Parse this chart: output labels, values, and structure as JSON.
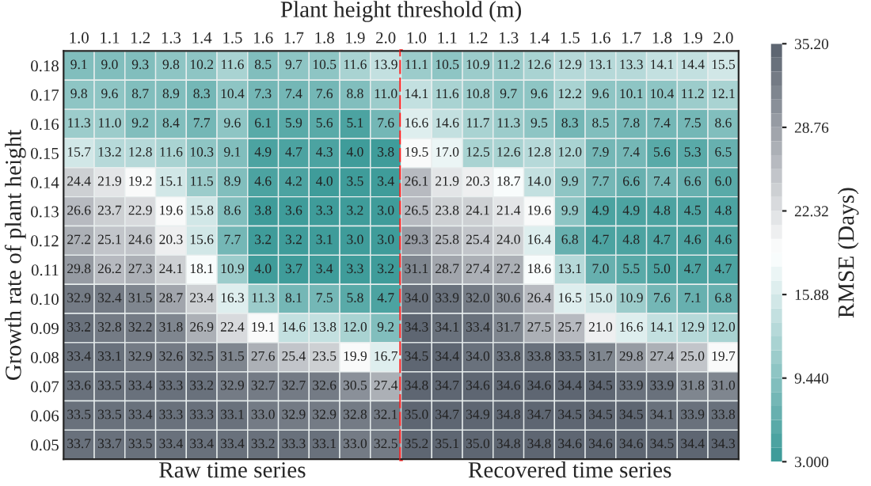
{
  "chart_data": [
    {
      "type": "heatmap",
      "title": "Plant height threshold (m)",
      "ylabel": "Growth rate of plant height",
      "xlabel": "Raw time series",
      "categories": [
        "1.0",
        "1.1",
        "1.2",
        "1.3",
        "1.4",
        "1.5",
        "1.6",
        "1.7",
        "1.8",
        "1.9",
        "2.0"
      ],
      "y_categories": [
        "0.18",
        "0.17",
        "0.16",
        "0.15",
        "0.14",
        "0.13",
        "0.12",
        "0.11",
        "0.10",
        "0.09",
        "0.08",
        "0.07",
        "0.06",
        "0.05"
      ],
      "cells": [
        [
          9.1,
          9.0,
          9.3,
          9.8,
          10.2,
          11.6,
          8.5,
          9.7,
          10.5,
          11.6,
          13.9
        ],
        [
          9.8,
          9.6,
          8.7,
          8.9,
          8.3,
          10.4,
          7.3,
          7.4,
          7.6,
          8.8,
          11.0
        ],
        [
          11.3,
          11.0,
          9.2,
          8.4,
          7.7,
          9.6,
          6.1,
          5.9,
          5.6,
          5.1,
          7.6
        ],
        [
          15.7,
          13.2,
          12.8,
          11.6,
          10.3,
          9.1,
          4.9,
          4.7,
          4.3,
          4.0,
          3.8
        ],
        [
          24.4,
          21.9,
          19.2,
          15.1,
          11.5,
          8.9,
          4.6,
          4.2,
          4.0,
          3.5,
          3.4
        ],
        [
          26.6,
          23.7,
          22.9,
          19.6,
          15.8,
          8.6,
          3.8,
          3.6,
          3.3,
          3.2,
          3.0
        ],
        [
          27.2,
          25.1,
          24.6,
          20.3,
          15.6,
          7.7,
          3.2,
          3.2,
          3.1,
          3.0,
          3.0
        ],
        [
          29.8,
          26.2,
          27.3,
          24.1,
          18.1,
          10.9,
          4.0,
          3.7,
          3.4,
          3.3,
          3.2
        ],
        [
          32.9,
          32.4,
          31.5,
          28.7,
          23.4,
          16.3,
          11.3,
          8.1,
          7.5,
          5.8,
          4.7
        ],
        [
          33.2,
          32.8,
          32.2,
          31.8,
          26.9,
          22.4,
          19.1,
          14.6,
          13.8,
          12.0,
          9.2
        ],
        [
          33.4,
          33.1,
          32.9,
          32.6,
          32.5,
          31.5,
          27.6,
          25.4,
          23.5,
          19.9,
          16.7
        ],
        [
          33.6,
          33.5,
          33.4,
          33.3,
          33.2,
          32.9,
          32.7,
          32.7,
          32.6,
          30.5,
          27.4
        ],
        [
          33.5,
          33.5,
          33.4,
          33.3,
          33.3,
          33.1,
          33.0,
          32.9,
          32.9,
          32.8,
          32.1
        ],
        [
          33.7,
          33.7,
          33.5,
          33.4,
          33.4,
          33.4,
          33.2,
          33.3,
          33.1,
          33.0,
          32.5
        ]
      ],
      "cell_labels": [
        [
          "9.1",
          "9.0",
          "9.3",
          "9.8",
          "10.2",
          "11.6",
          "8.5",
          "9.7",
          "10.5",
          "11.6",
          "13.9"
        ],
        [
          "9.8",
          "9.6",
          "8.7",
          "8.9",
          "8.3",
          "10.4",
          "7.3",
          "7.4",
          "7.6",
          "8.8",
          "11.0"
        ],
        [
          "11.3",
          "11.0",
          "9.2",
          "8.4",
          "7.7",
          "9.6",
          "6.1",
          "5.9",
          "5.6",
          "5.1",
          "7.6"
        ],
        [
          "15.7",
          "13.2",
          "12.8",
          "11.6",
          "10.3",
          "9.1",
          "4.9",
          "4.7",
          "4.3",
          "4.0",
          "3.8"
        ],
        [
          "24.4",
          "21.9",
          "19.2",
          "15.1",
          "11.5",
          "8.9",
          "4.6",
          "4.2",
          "4.0",
          "3.5",
          "3.4"
        ],
        [
          "26.6",
          "23.7",
          "22.9",
          "19.6",
          "15.8",
          "8.6",
          "3.8",
          "3.6",
          "3.3",
          "3.2",
          "3.0"
        ],
        [
          "27.2",
          "25.1",
          "24.6",
          "20.3",
          "15.6",
          "7.7",
          "3.2",
          "3.2",
          "3.1",
          "3.0",
          "3.0"
        ],
        [
          "29.8",
          "26.2",
          "27.3",
          "24.1",
          "18.1",
          "10.9",
          "4.0",
          "3.7",
          "3.4",
          "3.3",
          "3.2"
        ],
        [
          "32.9",
          "32.4",
          "31.5",
          "28.7",
          "23.4",
          "16.3",
          "11.3",
          "8.1",
          "7.5",
          "5.8",
          "4.7"
        ],
        [
          "33.2",
          "32.8",
          "32.2",
          "31.8",
          "26.9",
          "22.4",
          "19.1",
          "14.6",
          "13.8",
          "12.0",
          "9.2"
        ],
        [
          "33.4",
          "33.1",
          "32.9",
          "32.6",
          "32.5",
          "31.5",
          "27.6",
          "25.4",
          "23.5",
          "19.9",
          "16.7"
        ],
        [
          "33.6",
          "33.5",
          "33.4",
          "33.3",
          "33.2",
          "32.9",
          "32.7",
          "32.7",
          "32.6",
          "30.5",
          "27.4"
        ],
        [
          "33.5",
          "33.5",
          "33.4",
          "33.3",
          "33.3",
          "33.1",
          "33.0",
          "32.9",
          "32.9",
          "32.8",
          "32.1"
        ],
        [
          "33.7",
          "33.7",
          "33.5",
          "33.4",
          "33.4",
          "33.4",
          "33.2",
          "33.3",
          "33.1",
          "33.0",
          "32.5"
        ]
      ],
      "colors": [
        "#3f9c9a",
        "#ffffff",
        "#5e6672"
      ]
    },
    {
      "type": "heatmap",
      "xlabel": "Recovered time series",
      "clabel": "RMSE (Days)",
      "tick_labels": "x",
      "categories": [
        "1.0",
        "1.1",
        "1.2",
        "1.3",
        "1.4",
        "1.5",
        "1.6",
        "1.7",
        "1.8",
        "1.9",
        "2.0"
      ],
      "y_categories": [
        "0.18",
        "0.17",
        "0.16",
        "0.15",
        "0.14",
        "0.13",
        "0.12",
        "0.11",
        "0.10",
        "0.09",
        "0.08",
        "0.07",
        "0.06",
        "0.05"
      ],
      "cells": [
        [
          11.1,
          10.5,
          10.9,
          11.2,
          12.6,
          12.9,
          13.1,
          13.3,
          14.1,
          14.4,
          15.5
        ],
        [
          14.1,
          11.6,
          10.8,
          9.7,
          9.6,
          12.2,
          9.6,
          10.1,
          10.4,
          11.2,
          12.1
        ],
        [
          16.6,
          14.6,
          11.7,
          11.3,
          9.5,
          8.3,
          8.5,
          7.8,
          7.4,
          7.5,
          8.6
        ],
        [
          19.5,
          17.0,
          12.5,
          12.6,
          12.8,
          12.0,
          7.9,
          7.4,
          5.6,
          5.3,
          6.5
        ],
        [
          26.1,
          21.9,
          20.3,
          18.7,
          14.0,
          9.9,
          7.7,
          6.6,
          7.4,
          6.6,
          6.0
        ],
        [
          26.5,
          23.8,
          24.1,
          21.4,
          19.6,
          9.9,
          4.9,
          4.9,
          4.8,
          4.5,
          4.8
        ],
        [
          29.3,
          25.8,
          25.4,
          24.0,
          16.4,
          6.8,
          4.7,
          4.8,
          4.7,
          4.6,
          4.6
        ],
        [
          31.1,
          28.7,
          27.4,
          27.2,
          18.6,
          13.1,
          7.0,
          5.5,
          5.0,
          4.7,
          4.7
        ],
        [
          34.0,
          33.9,
          32.0,
          30.6,
          26.4,
          16.5,
          15.0,
          10.9,
          7.6,
          7.1,
          6.8
        ],
        [
          34.3,
          34.1,
          33.4,
          31.7,
          27.5,
          25.7,
          21.0,
          16.6,
          14.1,
          12.9,
          12.0
        ],
        [
          34.5,
          34.4,
          34.0,
          33.8,
          33.8,
          33.5,
          31.7,
          29.8,
          27.4,
          25.0,
          19.7
        ],
        [
          34.8,
          34.7,
          34.6,
          34.6,
          34.6,
          34.4,
          34.5,
          33.9,
          33.9,
          31.8,
          31.0
        ],
        [
          35.0,
          34.7,
          34.9,
          34.8,
          34.7,
          34.5,
          34.5,
          34.5,
          34.1,
          33.9,
          33.8
        ],
        [
          35.2,
          35.1,
          35.0,
          34.8,
          34.8,
          34.6,
          34.6,
          34.6,
          34.5,
          34.4,
          34.3
        ]
      ],
      "cell_labels": [
        [
          "11.1",
          "10.5",
          "10.9",
          "11.2",
          "12.6",
          "12.9",
          "13.1",
          "13.3",
          "14.1",
          "14.4",
          "15.5"
        ],
        [
          "14.1",
          "11.6",
          "10.8",
          "9.7",
          "9.6",
          "12.2",
          "9.6",
          "10.1",
          "10.4",
          "11.2",
          "12.1"
        ],
        [
          "16.6",
          "14.6",
          "11.7",
          "11.3",
          "9.5",
          "8.3",
          "8.5",
          "7.8",
          "7.4",
          "7.5",
          "8.6"
        ],
        [
          "19.5",
          "17.0",
          "12.5",
          "12.6",
          "12.8",
          "12.0",
          "7.9",
          "7.4",
          "5.6",
          "5.3",
          "6.5"
        ],
        [
          "26.1",
          "21.9",
          "20.3",
          "18.7",
          "14.0",
          "9.9",
          "7.7",
          "6.6",
          "7.4",
          "6.6",
          "6.0"
        ],
        [
          "26.5",
          "23.8",
          "24.1",
          "21.4",
          "19.6",
          "9.9",
          "4.9",
          "4.9",
          "4.8",
          "4.5",
          "4.8"
        ],
        [
          "29.3",
          "25.8",
          "25.4",
          "24.0",
          "16.4",
          "6.8",
          "4.7",
          "4.8",
          "4.7",
          "4.6",
          "4.6"
        ],
        [
          "31.1",
          "28.7",
          "27.4",
          "27.2",
          "18.6",
          "13.1",
          "7.0",
          "5.5",
          "5.0",
          "4.7",
          "4.7"
        ],
        [
          "34.0",
          "33.9",
          "32.0",
          "30.6",
          "26.4",
          "16.5",
          "15.0",
          "10.9",
          "7.6",
          "7.1",
          "6.8"
        ],
        [
          "34.3",
          "34.1",
          "33.4",
          "31.7",
          "27.5",
          "25.7",
          "21.0",
          "16.6",
          "14.1",
          "12.9",
          "12.0"
        ],
        [
          "34.5",
          "34.4",
          "34.0",
          "33.8",
          "33.8",
          "33.5",
          "31.7",
          "29.8",
          "27.4",
          "25.0",
          "19.7"
        ],
        [
          "34.8",
          "34.7",
          "34.6",
          "34.6",
          "34.6",
          "34.4",
          "34.5",
          "33.9",
          "33.9",
          "31.8",
          "31.0"
        ],
        [
          "35.0",
          "34.7",
          "34.9",
          "34.8",
          "34.7",
          "34.5",
          "34.5",
          "34.5",
          "34.1",
          "33.9",
          "33.8"
        ],
        [
          "35.2",
          "35.1",
          "35.0",
          "34.8",
          "34.8",
          "34.6",
          "34.6",
          "34.6",
          "34.5",
          "34.4",
          "34.3"
        ]
      ],
      "colors": [
        "#3f9c9a",
        "#ffffff",
        "#5e6672"
      ],
      "clim": [
        3.0,
        35.2
      ],
      "cticks": [
        {
          "value": 3.0,
          "label": "3.000"
        },
        {
          "value": 9.44,
          "label": "9.440"
        },
        {
          "value": 15.88,
          "label": "15.88"
        },
        {
          "value": 22.32,
          "label": "22.32"
        },
        {
          "value": 28.76,
          "label": "28.76"
        },
        {
          "value": 35.2,
          "label": "35.20"
        }
      ]
    }
  ]
}
